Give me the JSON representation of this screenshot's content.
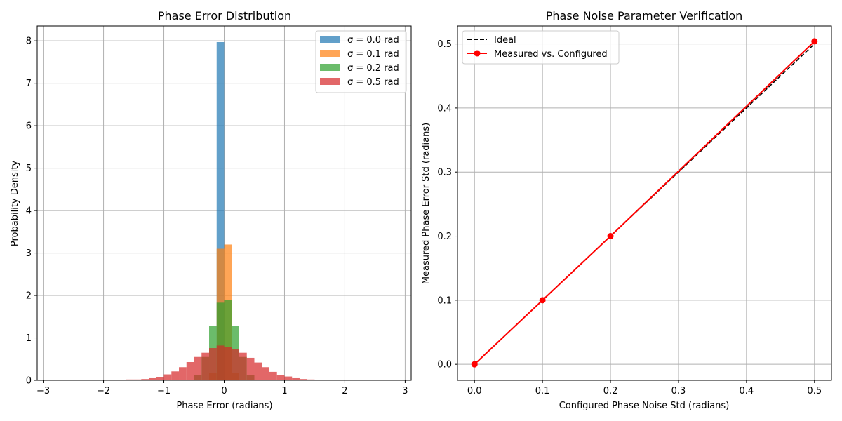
{
  "chart_data": [
    {
      "type": "histogram",
      "title": "Phase Error Distribution",
      "xlabel": "Phase Error (radians)",
      "ylabel": "Probability Density",
      "xlim": [
        -3.1,
        3.1
      ],
      "ylim": [
        0,
        8.35
      ],
      "xticks": [
        -3,
        -2,
        -1,
        0,
        1,
        2,
        3
      ],
      "yticks": [
        0,
        1,
        2,
        3,
        4,
        5,
        6,
        7,
        8
      ],
      "grid": true,
      "legend_position": "top-right",
      "bin_width": 0.125,
      "series": [
        {
          "name": "σ = 0.0 rad",
          "color": "#1f77b4",
          "bins": [
            {
              "start": -0.125,
              "value": 7.97
            }
          ]
        },
        {
          "name": "σ = 0.1 rad",
          "color": "#ff7f0e",
          "bins": [
            {
              "start": -0.25,
              "value": 0.17
            },
            {
              "start": -0.125,
              "value": 3.1
            },
            {
              "start": 0.0,
              "value": 3.2
            },
            {
              "start": 0.125,
              "value": 0.17
            }
          ]
        },
        {
          "name": "σ = 0.2 rad",
          "color": "#2ca02c",
          "bins": [
            {
              "start": -0.5,
              "value": 0.12
            },
            {
              "start": -0.375,
              "value": 0.55
            },
            {
              "start": -0.25,
              "value": 1.28
            },
            {
              "start": -0.125,
              "value": 1.83
            },
            {
              "start": 0.0,
              "value": 1.89
            },
            {
              "start": 0.125,
              "value": 1.28
            },
            {
              "start": 0.25,
              "value": 0.55
            },
            {
              "start": 0.375,
              "value": 0.12
            }
          ]
        },
        {
          "name": "σ = 0.5 rad",
          "color": "#d62728",
          "bins": [
            {
              "start": -1.75,
              "value": 0.01
            },
            {
              "start": -1.625,
              "value": 0.02
            },
            {
              "start": -1.5,
              "value": 0.02
            },
            {
              "start": -1.375,
              "value": 0.03
            },
            {
              "start": -1.25,
              "value": 0.05
            },
            {
              "start": -1.125,
              "value": 0.08
            },
            {
              "start": -1.0,
              "value": 0.14
            },
            {
              "start": -0.875,
              "value": 0.21
            },
            {
              "start": -0.75,
              "value": 0.31
            },
            {
              "start": -0.625,
              "value": 0.43
            },
            {
              "start": -0.5,
              "value": 0.55
            },
            {
              "start": -0.375,
              "value": 0.65
            },
            {
              "start": -0.25,
              "value": 0.76
            },
            {
              "start": -0.125,
              "value": 0.82
            },
            {
              "start": 0.0,
              "value": 0.79
            },
            {
              "start": 0.125,
              "value": 0.74
            },
            {
              "start": 0.25,
              "value": 0.65
            },
            {
              "start": 0.375,
              "value": 0.53
            },
            {
              "start": 0.5,
              "value": 0.42
            },
            {
              "start": 0.625,
              "value": 0.31
            },
            {
              "start": 0.75,
              "value": 0.2
            },
            {
              "start": 0.875,
              "value": 0.13
            },
            {
              "start": 1.0,
              "value": 0.09
            },
            {
              "start": 1.125,
              "value": 0.05
            },
            {
              "start": 1.25,
              "value": 0.03
            },
            {
              "start": 1.375,
              "value": 0.02
            },
            {
              "start": 1.5,
              "value": 0.01
            }
          ]
        }
      ]
    },
    {
      "type": "line",
      "title": "Phase Noise Parameter Verification",
      "xlabel": "Configured Phase Noise Std (radians)",
      "ylabel": "Measured Phase Error Std (radians)",
      "xlim": [
        -0.025,
        0.525
      ],
      "ylim": [
        -0.025,
        0.528
      ],
      "xticks": [
        0.0,
        0.1,
        0.2,
        0.3,
        0.4,
        0.5
      ],
      "yticks": [
        0.0,
        0.1,
        0.2,
        0.3,
        0.4,
        0.5
      ],
      "grid": true,
      "legend_position": "top-left",
      "series": [
        {
          "name": "Ideal",
          "color": "#000000",
          "style": "dashed",
          "x": [
            0.0,
            0.5
          ],
          "y": [
            0.0,
            0.5
          ]
        },
        {
          "name": "Measured vs. Configured",
          "color": "#ff0000",
          "style": "solid-markers",
          "x": [
            0.0,
            0.1,
            0.2,
            0.5
          ],
          "y": [
            0.0,
            0.1,
            0.2,
            0.504
          ]
        }
      ]
    }
  ]
}
